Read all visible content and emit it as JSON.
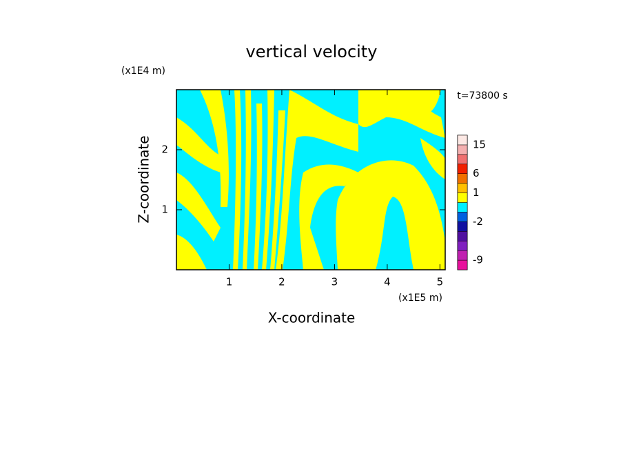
{
  "chart_data": {
    "type": "contour",
    "title": "vertical velocity",
    "xlabel": "X-coordinate",
    "ylabel": "Z-coordinate",
    "x_unit": "(x1E5 m)",
    "y_unit": "(x1E4 m)",
    "time_label": "t=73800 s",
    "xlim": [
      0,
      5.1
    ],
    "xticks": [
      1,
      2,
      3,
      4,
      5
    ],
    "ylim": [
      0,
      3
    ],
    "yticks": [
      1,
      2
    ],
    "colorbar": {
      "levels": [
        -12,
        -9,
        -6,
        -4,
        -3,
        -2,
        -1,
        0,
        1,
        3,
        6,
        9,
        12,
        15,
        21
      ],
      "colors": [
        "#e8109c",
        "#c020b0",
        "#8020c0",
        "#5010a0",
        "#1010a0",
        "#0060e0",
        "#00f0ff",
        "#ffff00",
        "#ffc000",
        "#f07000",
        "#f02000",
        "#f07070",
        "#f4b0b0",
        "#fce8e4"
      ],
      "ticks": [
        15,
        6,
        1,
        -2,
        -9
      ]
    }
  }
}
